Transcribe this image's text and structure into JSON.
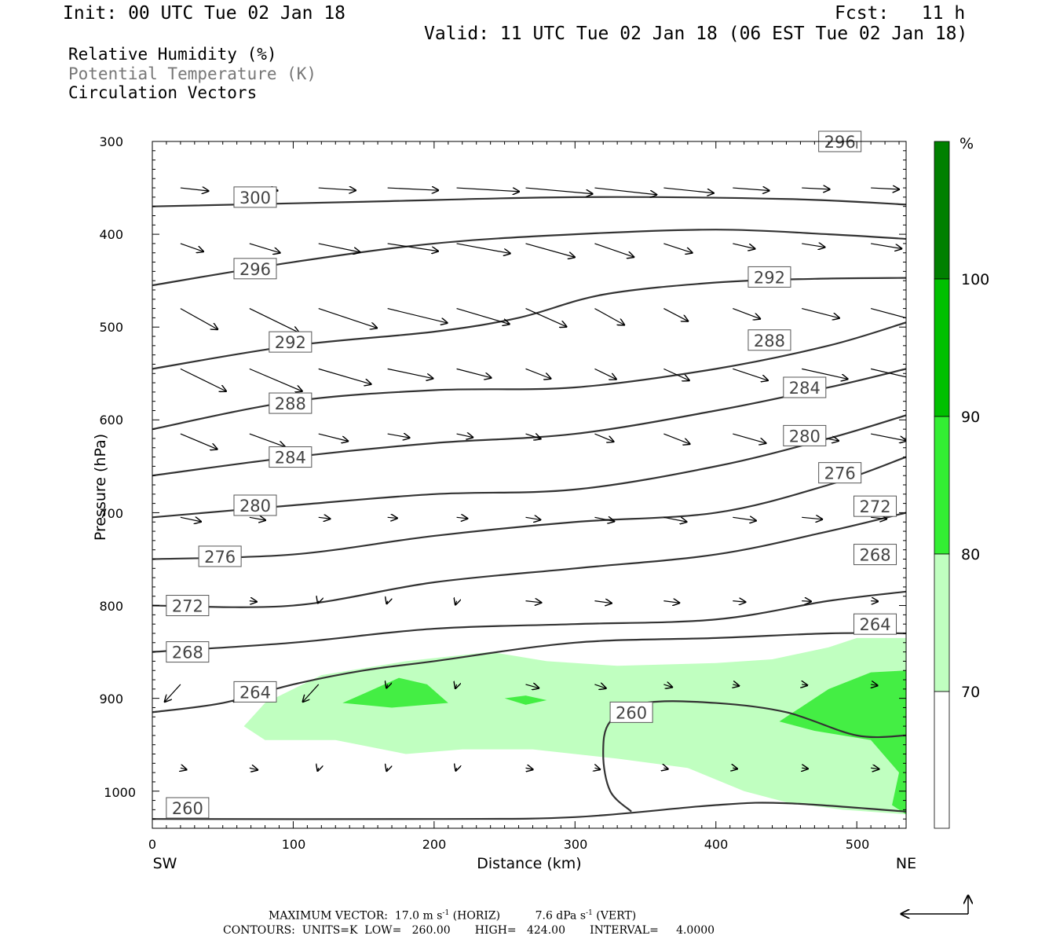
{
  "header": {
    "init": "Init: 00 UTC Tue 02 Jan 18",
    "fcst": "Fcst:   11 h",
    "valid": "Valid: 11 UTC Tue 02 Jan 18 (06 EST Tue 02 Jan 18)",
    "field1": "Relative Humidity (%)",
    "field2": "Potential Temperature (K)",
    "field3": "Circulation Vectors"
  },
  "footer": {
    "line1a": "MAXIMUM VECTOR:  17.0 m s",
    "line1b": "(HORIZ)",
    "line1c": "7.6 dPa s",
    "line1d": "(VERT)",
    "sup": "-1",
    "line2": "CONTOURS:  UNITS=K  LOW=   260.00       HIGH=   424.00       INTERVAL=     4.0000"
  },
  "axes": {
    "xlabel": "Distance (km)",
    "ylabel": "Pressure (hPa)",
    "left_end": "SW",
    "right_end": "NE",
    "x_ticks": [
      "0",
      "100",
      "200",
      "300",
      "400",
      "500"
    ],
    "y_ticks": [
      "300",
      "400",
      "500",
      "600",
      "700",
      "800",
      "900",
      "1000"
    ]
  },
  "colorbar": {
    "unit": "%",
    "labels": [
      "100",
      "90",
      "80",
      "70"
    ],
    "colors": [
      "#008000",
      "#00c000",
      "#33dd33",
      "#44ee44",
      "#c0ffc0",
      "#ffffff"
    ]
  },
  "chart_data": {
    "type": "contour",
    "xlim": [
      0,
      535
    ],
    "ylim": [
      300,
      1040
    ],
    "y_scale": "linear, inverted (pressure)",
    "theta_contours": [
      {
        "level": 300,
        "points": [
          [
            0,
            370
          ],
          [
            150,
            365
          ],
          [
            300,
            360
          ],
          [
            450,
            362
          ],
          [
            535,
            368
          ]
        ]
      },
      {
        "level": 296,
        "points": [
          [
            0,
            455
          ],
          [
            100,
            430
          ],
          [
            200,
            410
          ],
          [
            300,
            400
          ],
          [
            400,
            395
          ],
          [
            480,
            400
          ],
          [
            535,
            405
          ]
        ]
      },
      {
        "level": 292,
        "points": [
          [
            0,
            545
          ],
          [
            100,
            520
          ],
          [
            200,
            505
          ],
          [
            260,
            490
          ],
          [
            320,
            465
          ],
          [
            400,
            452
          ],
          [
            470,
            448
          ],
          [
            535,
            447
          ]
        ]
      },
      {
        "level": 288,
        "points": [
          [
            0,
            610
          ],
          [
            100,
            580
          ],
          [
            200,
            568
          ],
          [
            300,
            565
          ],
          [
            400,
            545
          ],
          [
            480,
            520
          ],
          [
            535,
            495
          ]
        ]
      },
      {
        "level": 284,
        "points": [
          [
            0,
            660
          ],
          [
            100,
            640
          ],
          [
            200,
            625
          ],
          [
            300,
            615
          ],
          [
            400,
            590
          ],
          [
            480,
            565
          ],
          [
            535,
            545
          ]
        ]
      },
      {
        "level": 280,
        "points": [
          [
            0,
            705
          ],
          [
            100,
            692
          ],
          [
            200,
            680
          ],
          [
            300,
            675
          ],
          [
            400,
            650
          ],
          [
            480,
            620
          ],
          [
            535,
            595
          ]
        ]
      },
      {
        "level": 276,
        "points": [
          [
            0,
            750
          ],
          [
            100,
            745
          ],
          [
            200,
            725
          ],
          [
            300,
            710
          ],
          [
            400,
            700
          ],
          [
            480,
            670
          ],
          [
            535,
            640
          ]
        ]
      },
      {
        "level": 272,
        "points": [
          [
            0,
            800
          ],
          [
            100,
            800
          ],
          [
            200,
            775
          ],
          [
            300,
            760
          ],
          [
            400,
            745
          ],
          [
            480,
            720
          ],
          [
            535,
            700
          ]
        ]
      },
      {
        "level": 268,
        "points": [
          [
            0,
            850
          ],
          [
            100,
            840
          ],
          [
            200,
            825
          ],
          [
            300,
            820
          ],
          [
            400,
            815
          ],
          [
            480,
            795
          ],
          [
            535,
            785
          ]
        ]
      },
      {
        "level": 264,
        "points": [
          [
            0,
            915
          ],
          [
            50,
            905
          ],
          [
            100,
            885
          ],
          [
            150,
            870
          ],
          [
            200,
            860
          ],
          [
            300,
            840
          ],
          [
            400,
            835
          ],
          [
            480,
            830
          ],
          [
            535,
            830
          ]
        ]
      },
      {
        "level": 260,
        "points": [
          [
            0,
            1030
          ],
          [
            200,
            1030
          ],
          [
            300,
            1028
          ],
          [
            400,
            1015
          ],
          [
            450,
            1013
          ],
          [
            535,
            1022
          ]
        ]
      },
      {
        "level": 260,
        "points": [
          [
            340,
            1022
          ],
          [
            325,
            1000
          ],
          [
            320,
            960
          ],
          [
            325,
            925
          ],
          [
            350,
            905
          ],
          [
            400,
            905
          ],
          [
            450,
            915
          ],
          [
            500,
            940
          ],
          [
            535,
            940
          ]
        ]
      }
    ],
    "rh_regions": [
      {
        "range": "70-80",
        "points": [
          [
            65,
            930
          ],
          [
            80,
            905
          ],
          [
            120,
            875
          ],
          [
            180,
            860
          ],
          [
            240,
            850
          ],
          [
            280,
            860
          ],
          [
            330,
            865
          ],
          [
            400,
            862
          ],
          [
            440,
            858
          ],
          [
            480,
            845
          ],
          [
            500,
            835
          ],
          [
            535,
            835
          ],
          [
            535,
            1025
          ],
          [
            490,
            1020
          ],
          [
            450,
            1012
          ],
          [
            420,
            1000
          ],
          [
            380,
            975
          ],
          [
            330,
            965
          ],
          [
            270,
            955
          ],
          [
            220,
            955
          ],
          [
            180,
            960
          ],
          [
            130,
            945
          ],
          [
            80,
            945
          ]
        ]
      },
      {
        "range": "80-90",
        "points": [
          [
            135,
            905
          ],
          [
            150,
            895
          ],
          [
            175,
            878
          ],
          [
            195,
            885
          ],
          [
            210,
            905
          ],
          [
            170,
            910
          ]
        ]
      },
      {
        "range": "80-90",
        "points": [
          [
            250,
            900
          ],
          [
            265,
            897
          ],
          [
            280,
            902
          ],
          [
            265,
            907
          ]
        ]
      },
      {
        "range": "80-90",
        "points": [
          [
            445,
            925
          ],
          [
            480,
            890
          ],
          [
            510,
            872
          ],
          [
            535,
            870
          ],
          [
            535,
            1025
          ],
          [
            525,
            1015
          ],
          [
            530,
            980
          ],
          [
            510,
            945
          ],
          [
            470,
            935
          ]
        ]
      }
    ],
    "vector_scale": {
      "horizontal": "17.0 m s-1",
      "vertical": "7.6 dPa s-1"
    }
  }
}
